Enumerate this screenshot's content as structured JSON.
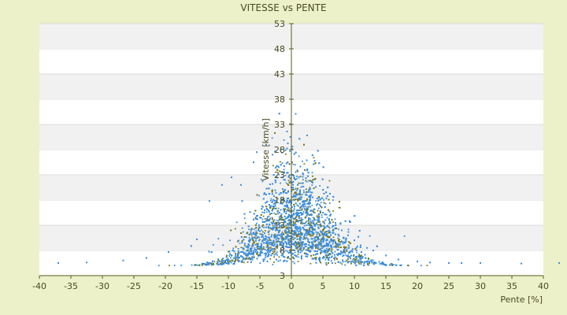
{
  "chart_data": {
    "type": "scatter",
    "title": "VITESSE vs PENTE",
    "xlabel": "Pente [%]",
    "ylabel": "Vitesse [km/h]",
    "xlim": [
      -40,
      40
    ],
    "ylim": [
      3,
      53
    ],
    "x_ticks": [
      -40,
      -35,
      -30,
      -25,
      -20,
      -15,
      -10,
      -5,
      0,
      5,
      10,
      15,
      20,
      25,
      30,
      35,
      40
    ],
    "y_ticks": [
      3,
      8,
      13,
      18,
      23,
      28,
      33,
      38,
      43,
      48,
      53
    ],
    "grid": "horizontal alternating bands",
    "legend": "none",
    "series": [
      {
        "color": "#3a8ee0",
        "values": []
      },
      {
        "color": "#7a7a1e",
        "values": []
      }
    ],
    "sample_points": [
      [
        -37.0,
        5.5
      ],
      [
        -32.5,
        5.6
      ],
      [
        -26.7,
        6.0
      ],
      [
        -23.0,
        6.5
      ],
      [
        -19.5,
        7.7
      ],
      [
        -15.0,
        10.2
      ],
      [
        -13.0,
        17.8
      ],
      [
        -11.0,
        21.0
      ],
      [
        -9.5,
        22.5
      ],
      [
        -8.0,
        21.0
      ],
      [
        -6.0,
        25.5
      ],
      [
        -5.5,
        27.5
      ],
      [
        -4.0,
        29.0
      ],
      [
        -3.0,
        27.0
      ],
      [
        -2.0,
        24.5
      ],
      [
        -1.0,
        22.0
      ],
      [
        0.0,
        20.5
      ],
      [
        1.0,
        21.0
      ],
      [
        2.0,
        19.5
      ],
      [
        3.0,
        18.0
      ],
      [
        4.0,
        17.0
      ],
      [
        5.0,
        15.5
      ],
      [
        6.0,
        14.0
      ],
      [
        7.0,
        13.0
      ],
      [
        8.0,
        12.0
      ],
      [
        9.0,
        11.0
      ],
      [
        10.0,
        10.0
      ],
      [
        11.0,
        9.0
      ],
      [
        12.0,
        8.5
      ],
      [
        13.0,
        8.0
      ],
      [
        15.0,
        7.0
      ],
      [
        17.0,
        6.2
      ],
      [
        20.0,
        5.8
      ],
      [
        22.0,
        5.6
      ],
      [
        25.0,
        5.5
      ],
      [
        27.0,
        5.5
      ],
      [
        30.0,
        5.5
      ],
      [
        36.5,
        5.4
      ],
      [
        42.5,
        5.5
      ]
    ],
    "point_cloud_generator": {
      "n_points": 6000,
      "x_center": 0.5,
      "x_spread": 5.0,
      "y_base": 5.0,
      "y_peak": 20.0,
      "secondary_color_share": 0.22
    }
  },
  "colors": {
    "background": "#ecf1c9",
    "plot_background": "#ffffff",
    "band": "#f1f1f1",
    "axis": "#5a5a20",
    "point_primary": "#3a8ee0",
    "point_secondary": "#7a7a1e"
  }
}
